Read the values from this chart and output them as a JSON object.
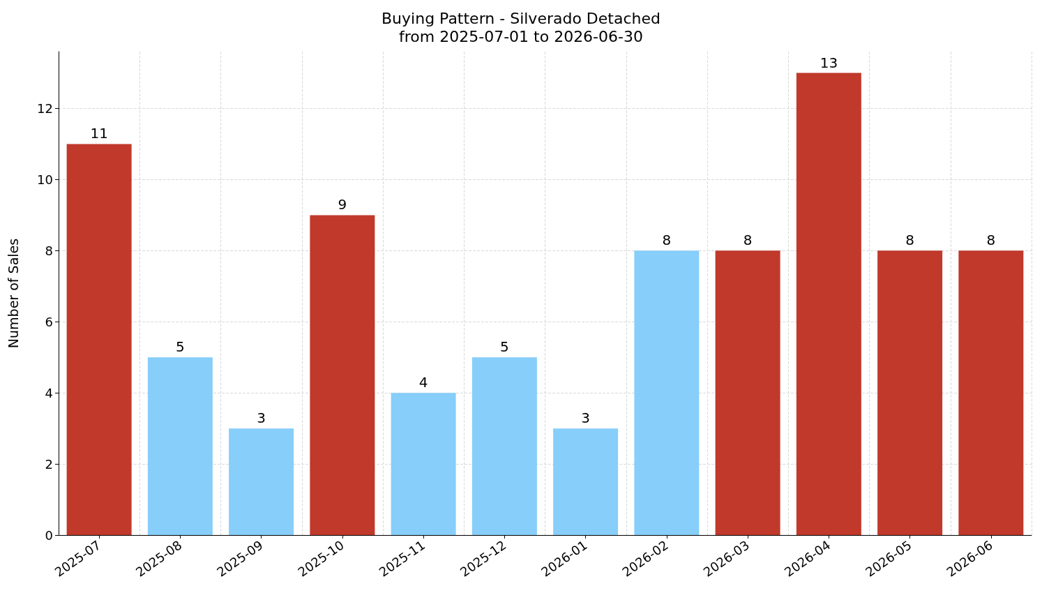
{
  "chart_data": {
    "type": "bar",
    "title": "Buying Pattern - Silverado Detached",
    "subtitle": "from 2025-07-01 to 2026-06-30",
    "ylabel": "Number of Sales",
    "categories": [
      "2025-07",
      "2025-08",
      "2025-09",
      "2025-10",
      "2025-11",
      "2025-12",
      "2026-01",
      "2026-02",
      "2026-03",
      "2026-04",
      "2026-05",
      "2026-06"
    ],
    "values": [
      11,
      5,
      3,
      9,
      4,
      5,
      3,
      8,
      8,
      13,
      8,
      8
    ],
    "colors": [
      "#c0392b",
      "#87cefa",
      "#87cefa",
      "#c0392b",
      "#87cefa",
      "#87cefa",
      "#87cefa",
      "#87cefa",
      "#c0392b",
      "#c0392b",
      "#c0392b",
      "#c0392b"
    ],
    "ylim": [
      0,
      13.6
    ],
    "yticks": [
      0,
      2,
      4,
      6,
      8,
      10,
      12
    ],
    "grid": true,
    "data_labels": true
  }
}
